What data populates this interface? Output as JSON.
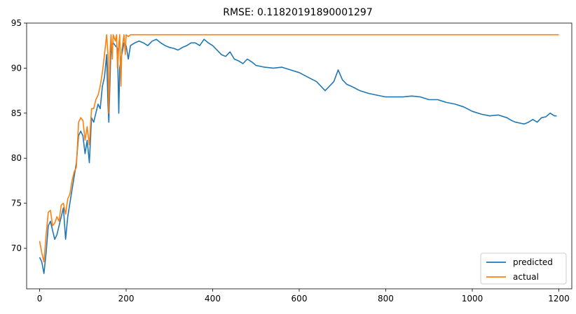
{
  "chart_data": {
    "type": "line",
    "title": "RMSE: 0.11820191890001297",
    "xlabel": "",
    "ylabel": "",
    "xlim": [
      -30,
      1230
    ],
    "ylim": [
      65.5,
      95
    ],
    "xticks": [
      0,
      200,
      400,
      600,
      800,
      1000,
      1200
    ],
    "yticks": [
      70,
      75,
      80,
      85,
      90,
      95
    ],
    "grid": false,
    "legend": "lower-right",
    "series": [
      {
        "name": "predicted",
        "color": "#1f77b4",
        "x": [
          0,
          5,
          10,
          15,
          20,
          25,
          30,
          35,
          40,
          45,
          50,
          55,
          60,
          65,
          70,
          75,
          80,
          85,
          90,
          95,
          100,
          105,
          110,
          115,
          120,
          125,
          130,
          135,
          140,
          145,
          150,
          155,
          158,
          160,
          165,
          170,
          175,
          180,
          183,
          185,
          190,
          195,
          200,
          205,
          210,
          220,
          230,
          240,
          250,
          260,
          270,
          280,
          290,
          300,
          310,
          320,
          330,
          340,
          350,
          360,
          370,
          380,
          390,
          400,
          410,
          420,
          430,
          440,
          450,
          460,
          470,
          480,
          490,
          500,
          520,
          540,
          560,
          580,
          600,
          620,
          640,
          660,
          670,
          680,
          690,
          700,
          710,
          720,
          740,
          760,
          780,
          800,
          820,
          840,
          860,
          880,
          900,
          920,
          940,
          960,
          980,
          1000,
          1020,
          1040,
          1060,
          1080,
          1090,
          1100,
          1110,
          1120,
          1130,
          1140,
          1150,
          1160,
          1170,
          1180,
          1190,
          1195
        ],
        "y": [
          69.0,
          68.5,
          67.2,
          69.5,
          72.5,
          73.0,
          72.0,
          71.0,
          71.5,
          72.5,
          73.5,
          74.5,
          71.0,
          73.5,
          75.0,
          76.5,
          78.0,
          79.5,
          82.5,
          83.0,
          82.5,
          80.5,
          82.0,
          79.5,
          84.5,
          84.0,
          85.0,
          86.0,
          85.5,
          88.0,
          89.0,
          91.5,
          86.0,
          84.0,
          92.5,
          92.8,
          92.5,
          92.2,
          85.0,
          90.0,
          91.5,
          92.8,
          92.5,
          91.0,
          92.5,
          92.8,
          93.0,
          92.8,
          92.5,
          93.0,
          93.2,
          92.8,
          92.5,
          92.3,
          92.2,
          92.0,
          92.3,
          92.5,
          92.8,
          92.8,
          92.5,
          93.2,
          92.8,
          92.5,
          92.0,
          91.5,
          91.3,
          91.8,
          91.0,
          90.8,
          90.5,
          91.0,
          90.7,
          90.3,
          90.1,
          90.0,
          90.1,
          89.8,
          89.5,
          89.0,
          88.5,
          87.5,
          88.0,
          88.5,
          89.8,
          88.7,
          88.2,
          88.0,
          87.5,
          87.2,
          87.0,
          86.8,
          86.8,
          86.8,
          86.9,
          86.8,
          86.5,
          86.5,
          86.2,
          86.0,
          85.7,
          85.2,
          84.9,
          84.7,
          84.8,
          84.5,
          84.2,
          84.0,
          83.9,
          83.8,
          84.0,
          84.3,
          84.0,
          84.5,
          84.6,
          85.0,
          84.7,
          84.7
        ]
      },
      {
        "name": "actual",
        "color": "#ff7f0e",
        "x": [
          0,
          5,
          10,
          15,
          20,
          25,
          30,
          35,
          40,
          45,
          50,
          55,
          60,
          65,
          70,
          75,
          80,
          85,
          90,
          95,
          100,
          105,
          110,
          115,
          120,
          125,
          130,
          135,
          140,
          145,
          150,
          155,
          158,
          160,
          163,
          165,
          168,
          170,
          175,
          178,
          180,
          183,
          185,
          188,
          190,
          193,
          195,
          198,
          200,
          205,
          210,
          215,
          1200
        ],
        "y": [
          70.8,
          69.5,
          68.5,
          71.5,
          74.0,
          74.2,
          72.5,
          72.8,
          73.5,
          73.0,
          74.8,
          75.0,
          73.8,
          75.5,
          76.0,
          77.5,
          78.5,
          79.0,
          84.0,
          84.5,
          84.2,
          82.0,
          83.5,
          81.5,
          85.5,
          85.5,
          86.5,
          87.0,
          88.0,
          89.5,
          91.5,
          93.7,
          91.5,
          85.0,
          92.0,
          93.7,
          91.0,
          93.7,
          93.0,
          93.7,
          90.0,
          92.5,
          93.7,
          88.0,
          92.0,
          93.0,
          93.7,
          91.5,
          93.7,
          93.5,
          93.7,
          93.7,
          93.7
        ]
      }
    ]
  }
}
